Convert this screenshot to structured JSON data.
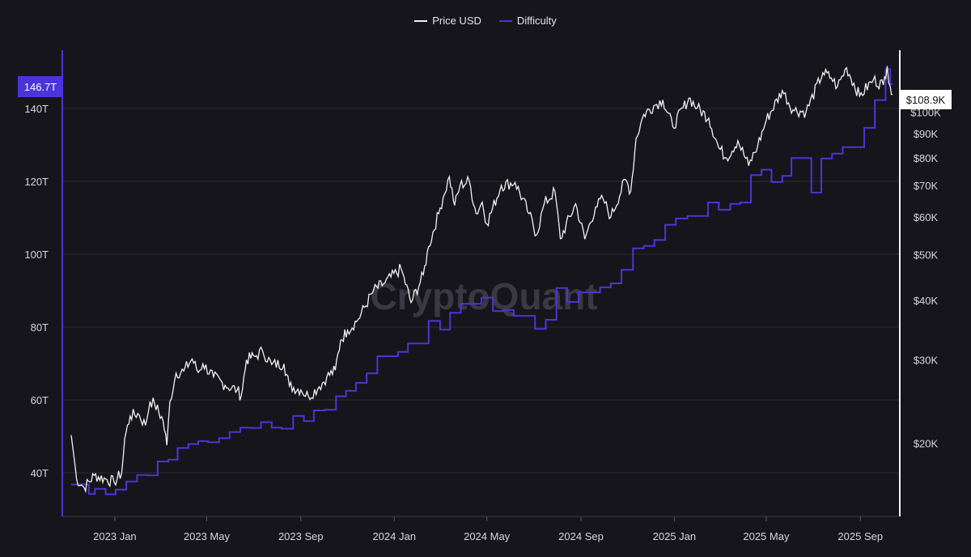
{
  "colors": {
    "background": "#16151b",
    "price": "#f2f2f2",
    "difficulty": "#4b35d8",
    "grid": "#2b2a33",
    "text": "#d6d6dc"
  },
  "legend": [
    {
      "label": "Price USD",
      "color": "#f2f2f2"
    },
    {
      "label": "Difficulty",
      "color": "#4b35d8"
    }
  ],
  "watermark": "CryptoQuant",
  "current_labels": {
    "difficulty": "146.7T",
    "price": "$108.9K"
  },
  "chart_data": {
    "type": "line",
    "title": "",
    "legend_position": "top-center",
    "grid": true,
    "x_axis": {
      "ticks": [
        "2023 Jan",
        "2023 May",
        "2023 Sep",
        "2024 Jan",
        "2024 May",
        "2024 Sep",
        "2025 Jan",
        "2025 May",
        "2025 Sep"
      ],
      "range": [
        "2022-11-05",
        "2025-10-13"
      ]
    },
    "y_left": {
      "label": "Difficulty",
      "ticks": [
        "40T",
        "60T",
        "80T",
        "100T",
        "120T",
        "140T"
      ],
      "ylim": [
        28,
        156
      ]
    },
    "y_right": {
      "label": "Price USD",
      "scale": "log",
      "ticks": [
        "$20K",
        "$30K",
        "$40K",
        "$50K",
        "$60K",
        "$70K",
        "$80K",
        "$90K",
        "$100K"
      ],
      "ylim": [
        14000,
        135000
      ]
    },
    "series": [
      {
        "name": "Price USD",
        "axis": "right",
        "points": [
          [
            "2022-11-05",
            20800
          ],
          [
            "2022-11-09",
            18500
          ],
          [
            "2022-11-12",
            16800
          ],
          [
            "2022-11-22",
            16100
          ],
          [
            "2022-12-05",
            17100
          ],
          [
            "2022-12-20",
            16800
          ],
          [
            "2022-12-31",
            16550
          ],
          [
            "2023-01-10",
            17300
          ],
          [
            "2023-01-14",
            20500
          ],
          [
            "2023-01-21",
            22800
          ],
          [
            "2023-01-31",
            23100
          ],
          [
            "2023-02-10",
            21800
          ],
          [
            "2023-02-16",
            24500
          ],
          [
            "2023-02-22",
            24200
          ],
          [
            "2023-03-05",
            22300
          ],
          [
            "2023-03-10",
            19800
          ],
          [
            "2023-03-14",
            24500
          ],
          [
            "2023-03-22",
            28100
          ],
          [
            "2023-04-01",
            28400
          ],
          [
            "2023-04-12",
            30100
          ],
          [
            "2023-04-20",
            28200
          ],
          [
            "2023-04-26",
            29400
          ],
          [
            "2023-05-10",
            27600
          ],
          [
            "2023-05-25",
            26500
          ],
          [
            "2023-06-10",
            25900
          ],
          [
            "2023-06-15",
            25100
          ],
          [
            "2023-06-22",
            30000
          ],
          [
            "2023-07-05",
            30600
          ],
          [
            "2023-07-13",
            31300
          ],
          [
            "2023-07-25",
            29300
          ],
          [
            "2023-08-10",
            29400
          ],
          [
            "2023-08-17",
            26400
          ],
          [
            "2023-09-01",
            25900
          ],
          [
            "2023-09-11",
            25100
          ],
          [
            "2023-09-25",
            26300
          ],
          [
            "2023-10-05",
            27600
          ],
          [
            "2023-10-16",
            28500
          ],
          [
            "2023-10-23",
            33000
          ],
          [
            "2023-11-01",
            34600
          ],
          [
            "2023-11-15",
            36500
          ],
          [
            "2023-12-05",
            42000
          ],
          [
            "2023-12-20",
            43600
          ],
          [
            "2024-01-10",
            46700
          ],
          [
            "2024-01-23",
            39600
          ],
          [
            "2024-02-08",
            45300
          ],
          [
            "2024-02-15",
            52000
          ],
          [
            "2024-02-28",
            61000
          ],
          [
            "2024-03-05",
            66000
          ],
          [
            "2024-03-13",
            73000
          ],
          [
            "2024-03-20",
            63500
          ],
          [
            "2024-03-27",
            70000
          ],
          [
            "2024-04-08",
            71500
          ],
          [
            "2024-04-17",
            61000
          ],
          [
            "2024-04-25",
            64500
          ],
          [
            "2024-05-01",
            58000
          ],
          [
            "2024-05-20",
            70000
          ],
          [
            "2024-06-07",
            71000
          ],
          [
            "2024-06-25",
            61000
          ],
          [
            "2024-07-05",
            55000
          ],
          [
            "2024-07-15",
            64000
          ],
          [
            "2024-07-29",
            68000
          ],
          [
            "2024-08-05",
            54000
          ],
          [
            "2024-08-25",
            64000
          ],
          [
            "2024-09-06",
            53900
          ],
          [
            "2024-09-20",
            63000
          ],
          [
            "2024-09-30",
            65500
          ],
          [
            "2024-10-10",
            60000
          ],
          [
            "2024-10-29",
            72000
          ],
          [
            "2024-11-05",
            68000
          ],
          [
            "2024-11-12",
            88000
          ],
          [
            "2024-11-22",
            98800
          ],
          [
            "2024-12-05",
            103000
          ],
          [
            "2024-12-17",
            106000
          ],
          [
            "2024-12-30",
            93000
          ],
          [
            "2025-01-20",
            107000
          ],
          [
            "2025-01-31",
            102000
          ],
          [
            "2025-02-15",
            97000
          ],
          [
            "2025-02-28",
            84000
          ],
          [
            "2025-03-10",
            80000
          ],
          [
            "2025-03-25",
            87000
          ],
          [
            "2025-04-08",
            77000
          ],
          [
            "2025-04-20",
            85000
          ],
          [
            "2025-05-01",
            96000
          ],
          [
            "2025-05-22",
            111000
          ],
          [
            "2025-06-05",
            101000
          ],
          [
            "2025-06-22",
            100000
          ],
          [
            "2025-07-14",
            121000
          ],
          [
            "2025-07-25",
            118000
          ],
          [
            "2025-08-02",
            113000
          ],
          [
            "2025-08-14",
            124000
          ],
          [
            "2025-08-31",
            108000
          ],
          [
            "2025-09-18",
            117000
          ],
          [
            "2025-10-01",
            114000
          ],
          [
            "2025-10-06",
            125000
          ],
          [
            "2025-10-10",
            113000
          ],
          [
            "2025-10-13",
            108900
          ]
        ]
      },
      {
        "name": "Difficulty",
        "axis": "left",
        "step": true,
        "points": [
          [
            "2022-11-05",
            36.8
          ],
          [
            "2022-11-16",
            36.8
          ],
          [
            "2022-11-28",
            34.2
          ],
          [
            "2022-12-06",
            35.6
          ],
          [
            "2022-12-20",
            34.1
          ],
          [
            "2023-01-02",
            35.4
          ],
          [
            "2023-01-16",
            37.6
          ],
          [
            "2023-01-30",
            39.4
          ],
          [
            "2023-02-13",
            39.3
          ],
          [
            "2023-02-26",
            43.1
          ],
          [
            "2023-03-12",
            43.6
          ],
          [
            "2023-03-24",
            46.8
          ],
          [
            "2023-04-07",
            47.9
          ],
          [
            "2023-04-20",
            48.7
          ],
          [
            "2023-05-03",
            48.4
          ],
          [
            "2023-05-17",
            49.5
          ],
          [
            "2023-05-31",
            51.2
          ],
          [
            "2023-06-14",
            52.4
          ],
          [
            "2023-06-28",
            52.3
          ],
          [
            "2023-07-11",
            53.9
          ],
          [
            "2023-07-25",
            52.4
          ],
          [
            "2023-08-07",
            52.1
          ],
          [
            "2023-08-22",
            55.6
          ],
          [
            "2023-09-05",
            54.2
          ],
          [
            "2023-09-18",
            57.1
          ],
          [
            "2023-10-02",
            57.3
          ],
          [
            "2023-10-17",
            61.0
          ],
          [
            "2023-10-30",
            62.5
          ],
          [
            "2023-11-12",
            64.7
          ],
          [
            "2023-11-26",
            67.3
          ],
          [
            "2023-12-10",
            72.0
          ],
          [
            "2023-12-24",
            72.0
          ],
          [
            "2024-01-06",
            73.2
          ],
          [
            "2024-01-19",
            75.5
          ],
          [
            "2024-02-02",
            75.5
          ],
          [
            "2024-02-15",
            81.7
          ],
          [
            "2024-03-01",
            79.3
          ],
          [
            "2024-03-14",
            83.9
          ],
          [
            "2024-03-28",
            86.4
          ],
          [
            "2024-04-10",
            86.4
          ],
          [
            "2024-04-24",
            88.1
          ],
          [
            "2024-05-09",
            84.4
          ],
          [
            "2024-05-23",
            84.7
          ],
          [
            "2024-06-05",
            83.1
          ],
          [
            "2024-06-20",
            83.1
          ],
          [
            "2024-07-03",
            79.5
          ],
          [
            "2024-07-17",
            82.0
          ],
          [
            "2024-07-31",
            90.7
          ],
          [
            "2024-08-14",
            86.9
          ],
          [
            "2024-08-29",
            89.5
          ],
          [
            "2024-09-12",
            89.5
          ],
          [
            "2024-09-26",
            90.9
          ],
          [
            "2024-10-10",
            92.0
          ],
          [
            "2024-10-24",
            95.7
          ],
          [
            "2024-11-08",
            101.6
          ],
          [
            "2024-11-22",
            102.3
          ],
          [
            "2024-12-06",
            103.9
          ],
          [
            "2024-12-20",
            108.1
          ],
          [
            "2025-01-03",
            109.8
          ],
          [
            "2025-01-18",
            110.5
          ],
          [
            "2025-01-31",
            110.5
          ],
          [
            "2025-02-14",
            114.2
          ],
          [
            "2025-02-28",
            112.2
          ],
          [
            "2025-03-15",
            113.8
          ],
          [
            "2025-03-28",
            114.2
          ],
          [
            "2025-04-11",
            121.7
          ],
          [
            "2025-04-25",
            123.2
          ],
          [
            "2025-05-08",
            119.8
          ],
          [
            "2025-05-22",
            121.5
          ],
          [
            "2025-06-03",
            126.4
          ],
          [
            "2025-06-18",
            126.4
          ],
          [
            "2025-06-29",
            116.9
          ],
          [
            "2025-07-12",
            126.3
          ],
          [
            "2025-07-26",
            127.6
          ],
          [
            "2025-08-09",
            129.4
          ],
          [
            "2025-08-23",
            129.4
          ],
          [
            "2025-09-06",
            134.7
          ],
          [
            "2025-09-20",
            142.3
          ],
          [
            "2025-10-04",
            150.8
          ],
          [
            "2025-10-10",
            146.7
          ],
          [
            "2025-10-13",
            146.7
          ]
        ]
      }
    ]
  }
}
